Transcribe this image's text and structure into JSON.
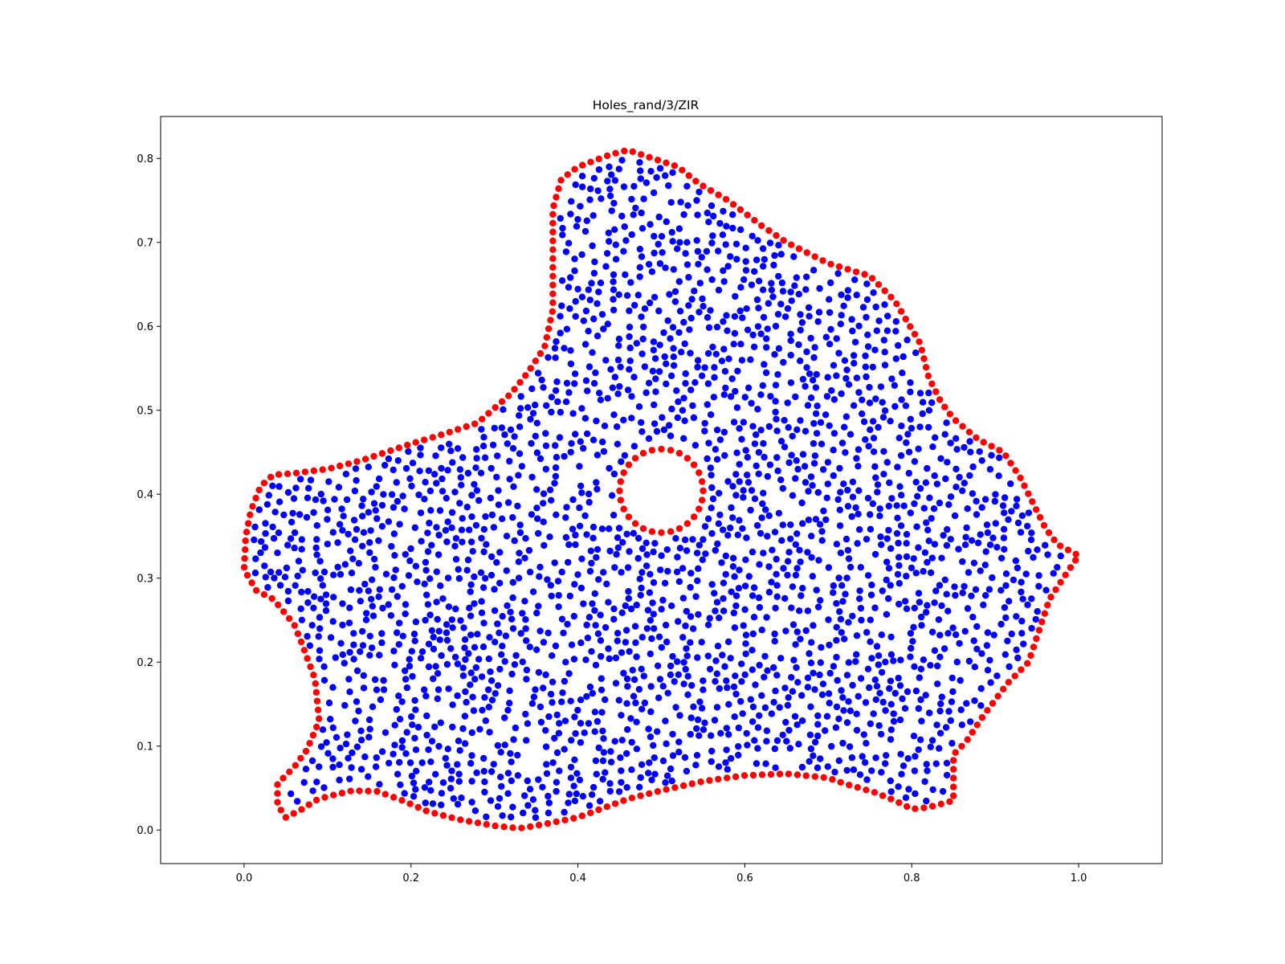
{
  "chart_data": {
    "type": "scatter",
    "title": "Holes_rand/3/ZIR",
    "xlabel": "",
    "ylabel": "",
    "xlim": [
      -0.1,
      1.1
    ],
    "ylim": [
      -0.04,
      0.85
    ],
    "xticks": [
      "0.0",
      "0.2",
      "0.4",
      "0.6",
      "0.8",
      "1.0"
    ],
    "yticks": [
      "0.0",
      "0.1",
      "0.2",
      "0.3",
      "0.4",
      "0.5",
      "0.6",
      "0.7",
      "0.8"
    ],
    "grid": false,
    "legend": "none",
    "series": [
      {
        "color": "#ff0000",
        "role": "outer-boundary",
        "polyline": [
          [
            0.05,
            0.015
          ],
          [
            0.04,
            0.03
          ],
          [
            0.04,
            0.055
          ],
          [
            0.06,
            0.075
          ],
          [
            0.075,
            0.095
          ],
          [
            0.09,
            0.13
          ],
          [
            0.085,
            0.18
          ],
          [
            0.07,
            0.22
          ],
          [
            0.06,
            0.245
          ],
          [
            0.035,
            0.275
          ],
          [
            0.015,
            0.285
          ],
          [
            0.0,
            0.31
          ],
          [
            0.002,
            0.35
          ],
          [
            0.008,
            0.38
          ],
          [
            0.02,
            0.41
          ],
          [
            0.035,
            0.423
          ],
          [
            0.06,
            0.425
          ],
          [
            0.1,
            0.43
          ],
          [
            0.14,
            0.44
          ],
          [
            0.2,
            0.46
          ],
          [
            0.24,
            0.472
          ],
          [
            0.28,
            0.485
          ],
          [
            0.32,
            0.52
          ],
          [
            0.34,
            0.545
          ],
          [
            0.36,
            0.575
          ],
          [
            0.37,
            0.62
          ],
          [
            0.37,
            0.665
          ],
          [
            0.37,
            0.71
          ],
          [
            0.37,
            0.74
          ],
          [
            0.38,
            0.775
          ],
          [
            0.4,
            0.79
          ],
          [
            0.44,
            0.805
          ],
          [
            0.46,
            0.81
          ],
          [
            0.49,
            0.8
          ],
          [
            0.52,
            0.79
          ],
          [
            0.545,
            0.77
          ],
          [
            0.58,
            0.75
          ],
          [
            0.6,
            0.735
          ],
          [
            0.62,
            0.72
          ],
          [
            0.65,
            0.7
          ],
          [
            0.7,
            0.675
          ],
          [
            0.75,
            0.66
          ],
          [
            0.78,
            0.63
          ],
          [
            0.795,
            0.605
          ],
          [
            0.81,
            0.58
          ],
          [
            0.82,
            0.54
          ],
          [
            0.835,
            0.51
          ],
          [
            0.85,
            0.49
          ],
          [
            0.88,
            0.465
          ],
          [
            0.91,
            0.45
          ],
          [
            0.93,
            0.42
          ],
          [
            0.945,
            0.39
          ],
          [
            0.96,
            0.36
          ],
          [
            0.975,
            0.34
          ],
          [
            1.0,
            0.327
          ],
          [
            0.985,
            0.305
          ],
          [
            0.965,
            0.275
          ],
          [
            0.955,
            0.245
          ],
          [
            0.94,
            0.2
          ],
          [
            0.915,
            0.175
          ],
          [
            0.885,
            0.135
          ],
          [
            0.865,
            0.105
          ],
          [
            0.85,
            0.09
          ],
          [
            0.85,
            0.035
          ],
          [
            0.82,
            0.027
          ],
          [
            0.8,
            0.025
          ],
          [
            0.78,
            0.035
          ],
          [
            0.755,
            0.045
          ],
          [
            0.72,
            0.055
          ],
          [
            0.7,
            0.062
          ],
          [
            0.65,
            0.067
          ],
          [
            0.6,
            0.065
          ],
          [
            0.55,
            0.058
          ],
          [
            0.5,
            0.047
          ],
          [
            0.46,
            0.037
          ],
          [
            0.4,
            0.015
          ],
          [
            0.36,
            0.007
          ],
          [
            0.33,
            0.002
          ],
          [
            0.3,
            0.005
          ],
          [
            0.26,
            0.012
          ],
          [
            0.22,
            0.022
          ],
          [
            0.19,
            0.035
          ],
          [
            0.16,
            0.046
          ],
          [
            0.13,
            0.047
          ],
          [
            0.1,
            0.04
          ],
          [
            0.085,
            0.035
          ],
          [
            0.07,
            0.025
          ],
          [
            0.06,
            0.02
          ],
          [
            0.05,
            0.015
          ]
        ]
      },
      {
        "color": "#ff0000",
        "role": "hole-boundary",
        "circle": {
          "cx": 0.5,
          "cy": 0.404,
          "r": 0.05,
          "points": 28
        }
      },
      {
        "color": "#0000ff",
        "role": "interior",
        "count": 2400,
        "seed": 12345
      }
    ]
  }
}
